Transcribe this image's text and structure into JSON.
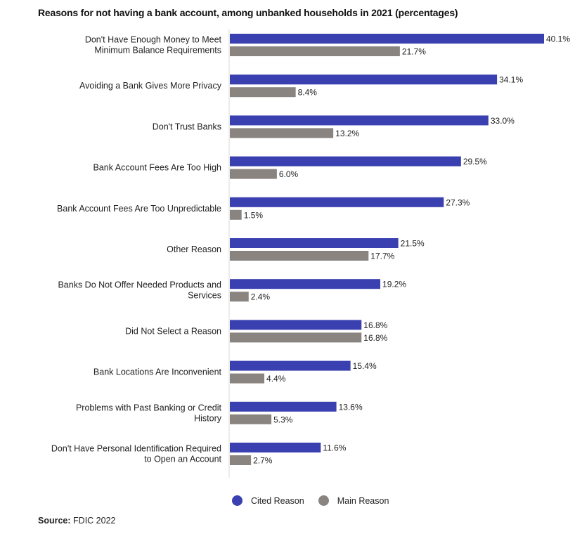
{
  "chart_data": {
    "type": "bar",
    "orientation": "horizontal",
    "title": "Reasons for not having a bank account, among unbanked households in 2021 (percentages)",
    "categories": [
      [
        "Don't Have Enough Money to Meet",
        "Minimum Balance Requirements"
      ],
      [
        "Avoiding a Bank Gives More Privacy"
      ],
      [
        "Don't Trust Banks"
      ],
      [
        "Bank Account Fees Are Too High"
      ],
      [
        "Bank Account Fees Are Too Unpredictable"
      ],
      [
        "Other Reason"
      ],
      [
        "Banks Do Not Offer Needed Products and",
        "Services"
      ],
      [
        "Did Not Select a Reason"
      ],
      [
        "Bank Locations Are Inconvenient"
      ],
      [
        "Problems with Past Banking or Credit",
        "History"
      ],
      [
        "Don't Have Personal Identification Required",
        "to Open an Account"
      ]
    ],
    "series": [
      {
        "name": "Cited Reason",
        "color": "#3a40b0",
        "values": [
          40.1,
          34.1,
          33.0,
          29.5,
          27.3,
          21.5,
          19.2,
          16.8,
          15.4,
          13.6,
          11.6
        ],
        "labels": [
          "40.1%",
          "34.1%",
          "33.0%",
          "29.5%",
          "27.3%",
          "21.5%",
          "19.2%",
          "16.8%",
          "15.4%",
          "13.6%",
          "11.6%"
        ]
      },
      {
        "name": "Main Reason",
        "color": "#8a8480",
        "values": [
          21.7,
          8.4,
          13.2,
          6.0,
          1.5,
          17.7,
          2.4,
          16.8,
          4.4,
          5.3,
          2.7
        ],
        "labels": [
          "21.7%",
          "8.4%",
          "13.2%",
          "6.0%",
          "1.5%",
          "17.7%",
          "2.4%",
          "16.8%",
          "4.4%",
          "5.3%",
          "2.7%"
        ]
      }
    ],
    "xlim": [
      0,
      40.1
    ],
    "legend_position": "bottom-center",
    "grid": false
  },
  "source": {
    "label": "Source:",
    "text": "FDIC 2022"
  }
}
